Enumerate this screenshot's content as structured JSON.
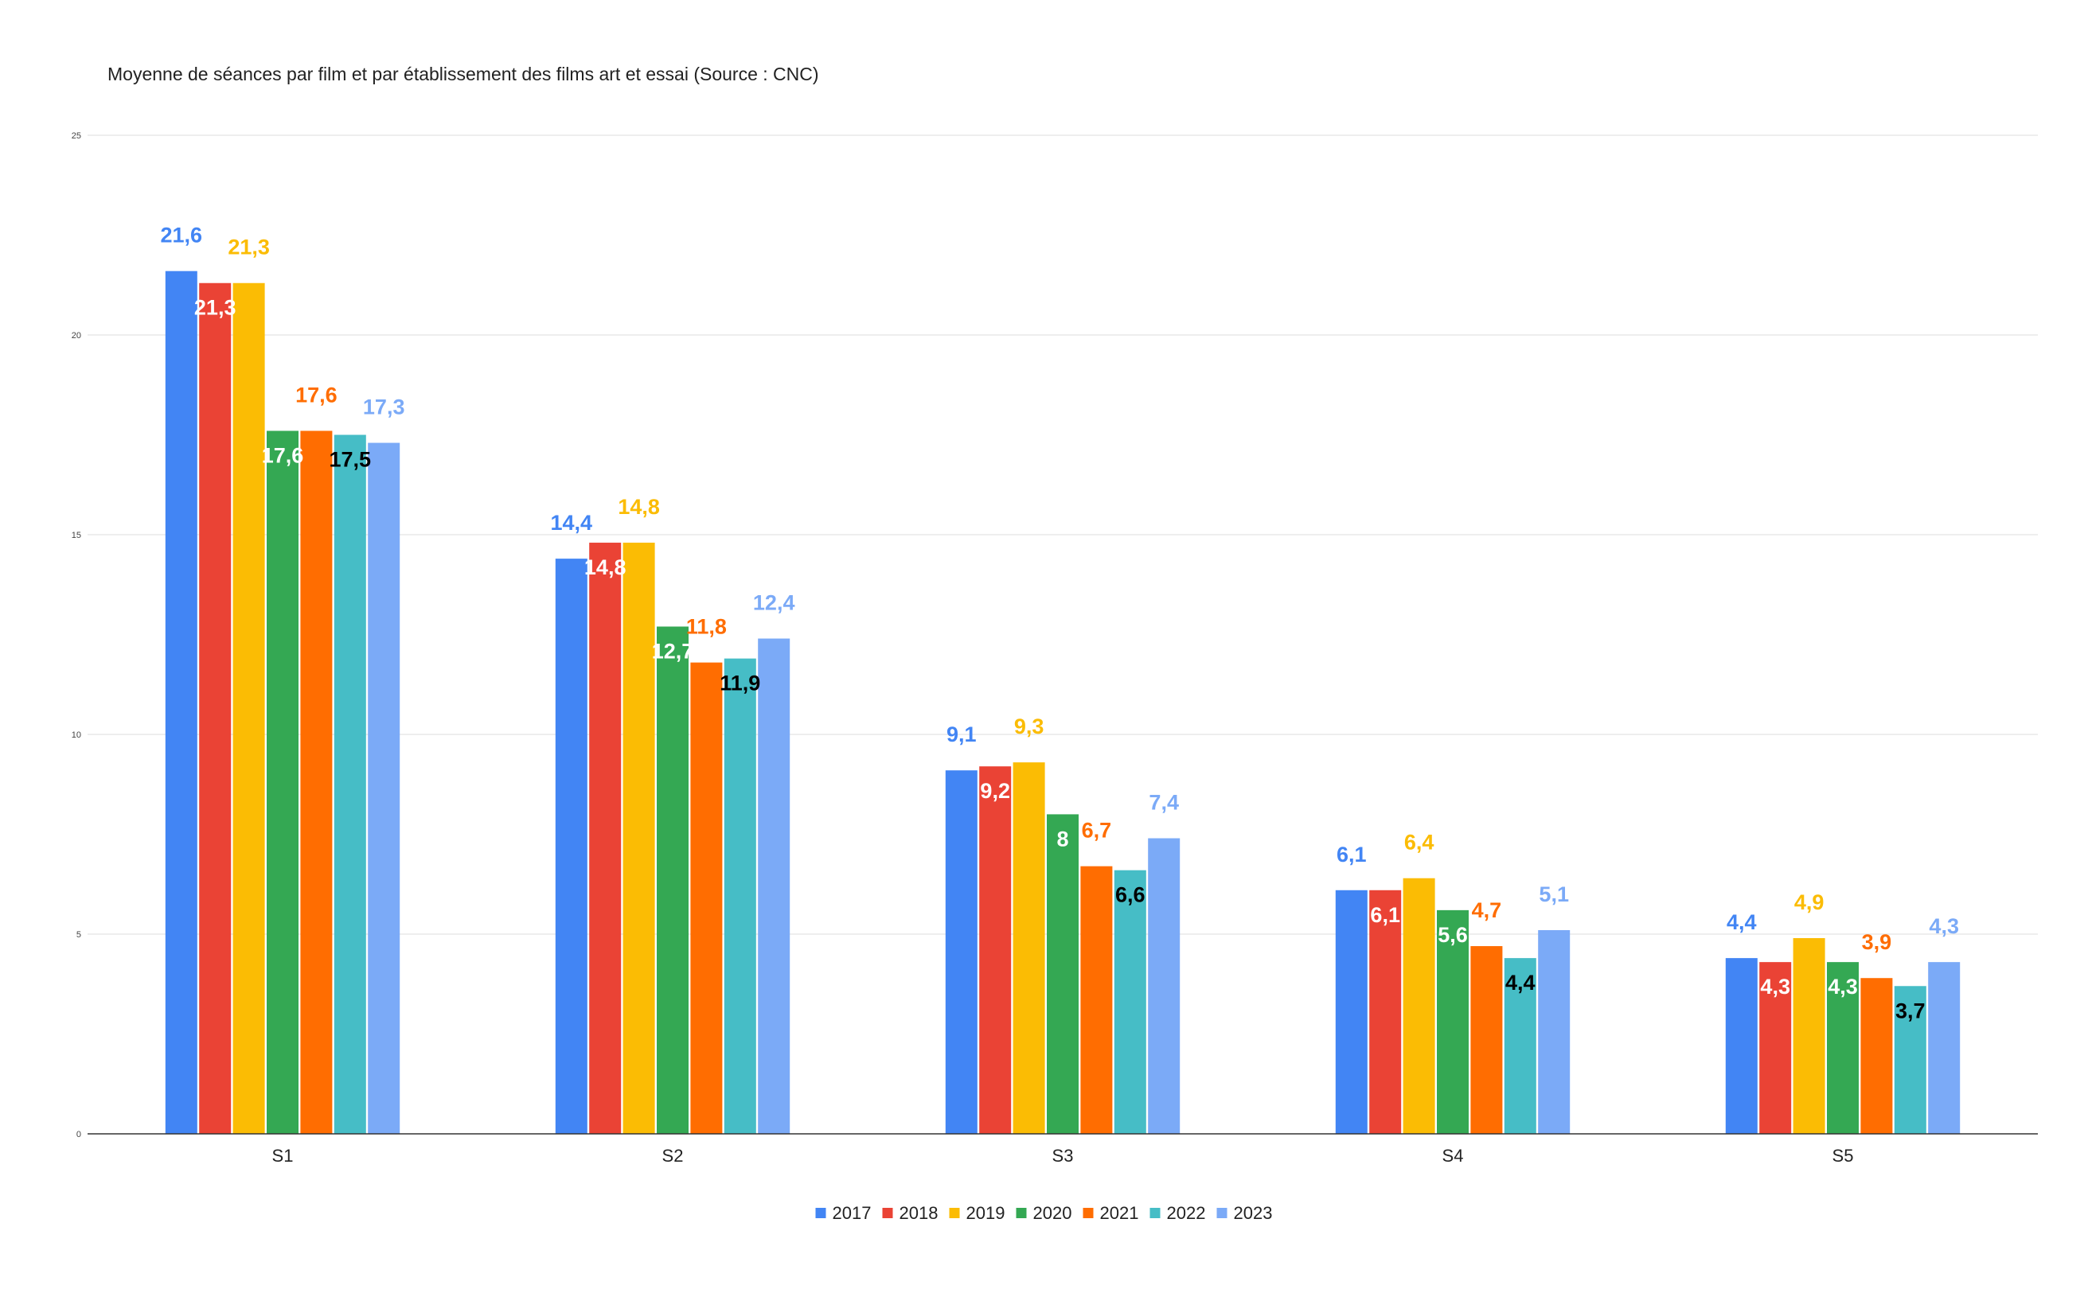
{
  "chart_data": {
    "type": "bar",
    "title": "Moyenne de séances par film et par établissement des films art et essai (Source : CNC)",
    "xlabel": "",
    "ylabel": "",
    "ylim": [
      0,
      25
    ],
    "yticks": [
      "0",
      "5",
      "10",
      "15",
      "20",
      "25"
    ],
    "grid": true,
    "legend_position": "bottom",
    "categories": [
      "S1",
      "S2",
      "S3",
      "S4",
      "S5"
    ],
    "series": [
      {
        "name": "2017",
        "color": "#4285F4",
        "values": [
          21.6,
          14.4,
          9.1,
          6.1,
          4.4
        ],
        "labels": [
          "21,6",
          "14,4",
          "9,1",
          "6,1",
          "4,4"
        ],
        "label_position": "above",
        "label_color": "#4285F4"
      },
      {
        "name": "2018",
        "color": "#EA4335",
        "values": [
          21.3,
          14.8,
          9.2,
          6.1,
          4.3
        ],
        "labels": [
          "21,3",
          "14,8",
          "9,2",
          "6,1",
          "4,3"
        ],
        "label_position": "inside",
        "label_color": "#FFFFFF"
      },
      {
        "name": "2019",
        "color": "#FBBC04",
        "values": [
          21.3,
          14.8,
          9.3,
          6.4,
          4.9
        ],
        "labels": [
          "21,3",
          "14,8",
          "9,3",
          "6,4",
          "4,9"
        ],
        "label_position": "above",
        "label_color": "#FBBC04"
      },
      {
        "name": "2020",
        "color": "#34A853",
        "values": [
          17.6,
          12.7,
          8,
          5.6,
          4.3
        ],
        "labels": [
          "17,6",
          "12,7",
          "8",
          "5,6",
          "4,3"
        ],
        "label_position": "inside",
        "label_color": "#FFFFFF"
      },
      {
        "name": "2021",
        "color": "#FF6D01",
        "values": [
          17.6,
          11.8,
          6.7,
          4.7,
          3.9
        ],
        "labels": [
          "17,6",
          "11,8",
          "6,7",
          "4,7",
          "3,9"
        ],
        "label_position": "above",
        "label_color": "#FF6D01"
      },
      {
        "name": "2022",
        "color": "#46BDC6",
        "values": [
          17.5,
          11.9,
          6.6,
          4.4,
          3.7
        ],
        "labels": [
          "17,5",
          "11,9",
          "6,6",
          "4,4",
          "3,7"
        ],
        "label_position": "inside",
        "label_color": "#000000"
      },
      {
        "name": "2023",
        "color": "#7BAAF7",
        "values": [
          17.3,
          12.4,
          7.4,
          5.1,
          4.3
        ],
        "labels": [
          "17,3",
          "12,4",
          "7,4",
          "5,1",
          "4,3"
        ],
        "label_position": "above",
        "label_color": "#7BAAF7"
      }
    ]
  }
}
